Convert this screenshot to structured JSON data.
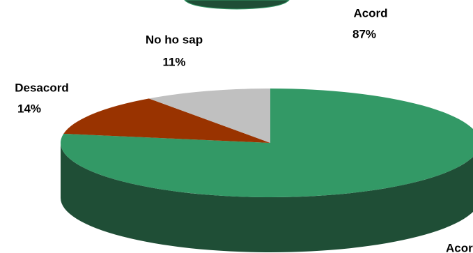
{
  "chart_data": {
    "type": "pie",
    "categories": [
      "Acord",
      "Desacord",
      "No ho sap"
    ],
    "values": [
      87,
      14,
      11
    ],
    "value_labels": [
      "87%",
      "14%",
      "11%"
    ],
    "colors": [
      "#339966",
      "#993300",
      "#c0c0c0"
    ],
    "side_colors": [
      "#1f4e36",
      "#5c1f00",
      "#7a7a7a"
    ]
  },
  "fragment_label": "Acord"
}
